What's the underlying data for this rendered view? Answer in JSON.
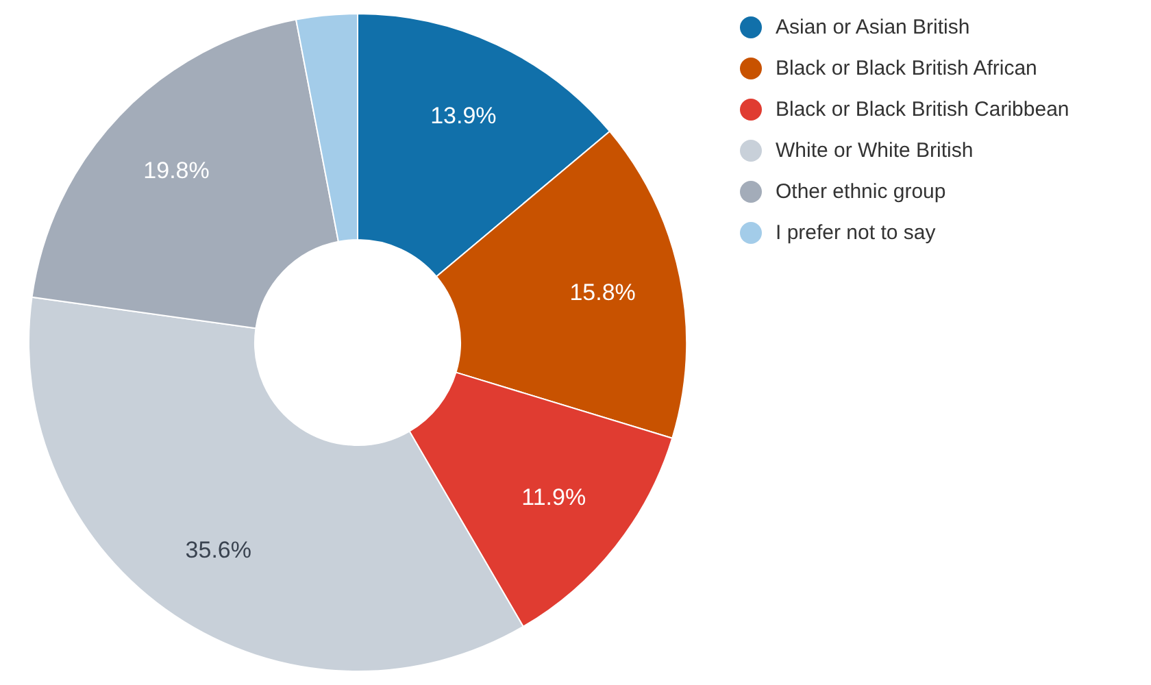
{
  "chart_data": {
    "type": "donut",
    "categories": [
      "Asian or Asian British",
      "Black or Black British African",
      "Black or Black British Caribbean",
      "White or White British",
      "Other ethnic group",
      "I prefer not to say"
    ],
    "values": [
      13.9,
      15.8,
      11.9,
      35.6,
      19.8,
      3.0
    ],
    "value_labels": [
      "13.9%",
      "15.8%",
      "11.9%",
      "35.6%",
      "19.8%",
      null
    ],
    "colors": [
      "#1170aa",
      "#c85200",
      "#e03c31",
      "#c8d0d9",
      "#a3acb9",
      "#a3cce9"
    ],
    "legend": "right"
  }
}
